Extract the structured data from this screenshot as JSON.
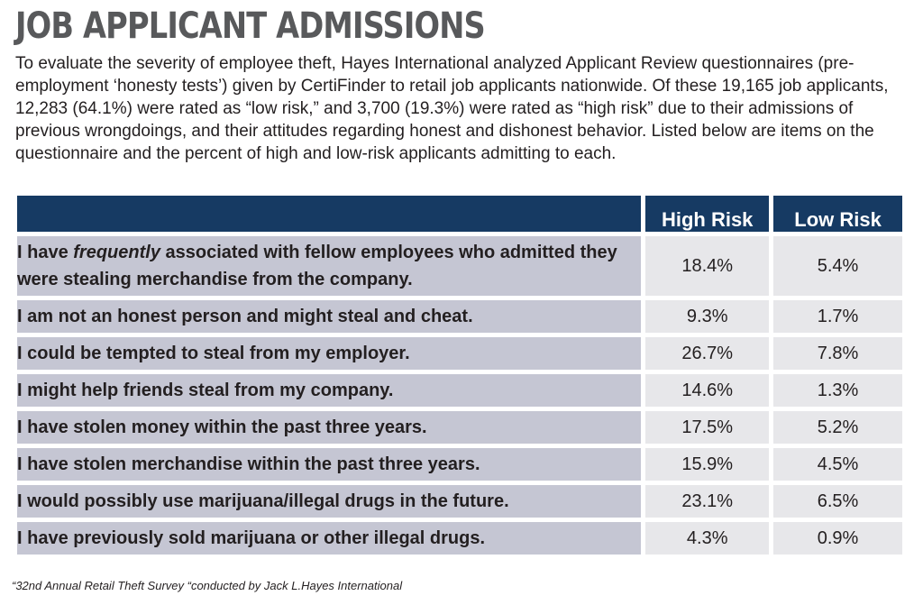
{
  "title": "JOB APPLICANT ADMISSIONS",
  "intro": "To evaluate the severity of employee theft, Hayes International analyzed Applicant Review questionnaires (pre-employment ‘honesty tests’) given by CertiFinder to retail job applicants nationwide. Of these 19,165 job applicants, 12,283 (64.1%) were rated as “low risk,” and 3,700 (19.3%) were rated as “high risk” due to their admissions of previous wrongdoings, and their attitudes regarding honest and dishonest behavior. Listed below are items on the questionnaire and the percent of high and low-risk applicants admitting to each.",
  "table": {
    "col_high": "High Risk",
    "col_low": "Low Risk",
    "row1_pre": "I have ",
    "row1_em": "frequently",
    "row1_post": " associated with fellow employees who admitted they were stealing merchandise from the company."
  },
  "chart_data": {
    "type": "table",
    "columns": [
      "High Risk",
      "Low Risk"
    ],
    "rows": [
      {
        "item": "I have frequently associated with fellow employees who admitted they were stealing merchandise from the company.",
        "high": "18.4%",
        "low": "5.4%"
      },
      {
        "item": "I am not an honest person and might steal and cheat.",
        "high": "9.3%",
        "low": "1.7%"
      },
      {
        "item": "I could be tempted to steal from my employer.",
        "high": "26.7%",
        "low": "7.8%"
      },
      {
        "item": "I might help friends steal from my company.",
        "high": "14.6%",
        "low": "1.3%"
      },
      {
        "item": "I have stolen money within the past three years.",
        "high": "17.5%",
        "low": "5.2%"
      },
      {
        "item": "I have stolen merchandise within the past three years.",
        "high": "15.9%",
        "low": "4.5%"
      },
      {
        "item": "I would possibly use marijuana/illegal drugs in the future.",
        "high": "23.1%",
        "low": "6.5%"
      },
      {
        "item": "I have previously sold marijuana or other illegal drugs.",
        "high": "4.3%",
        "low": "0.9%"
      }
    ]
  },
  "footnote": "“32nd Annual Retail Theft Survey “conducted by Jack L.Hayes International"
}
